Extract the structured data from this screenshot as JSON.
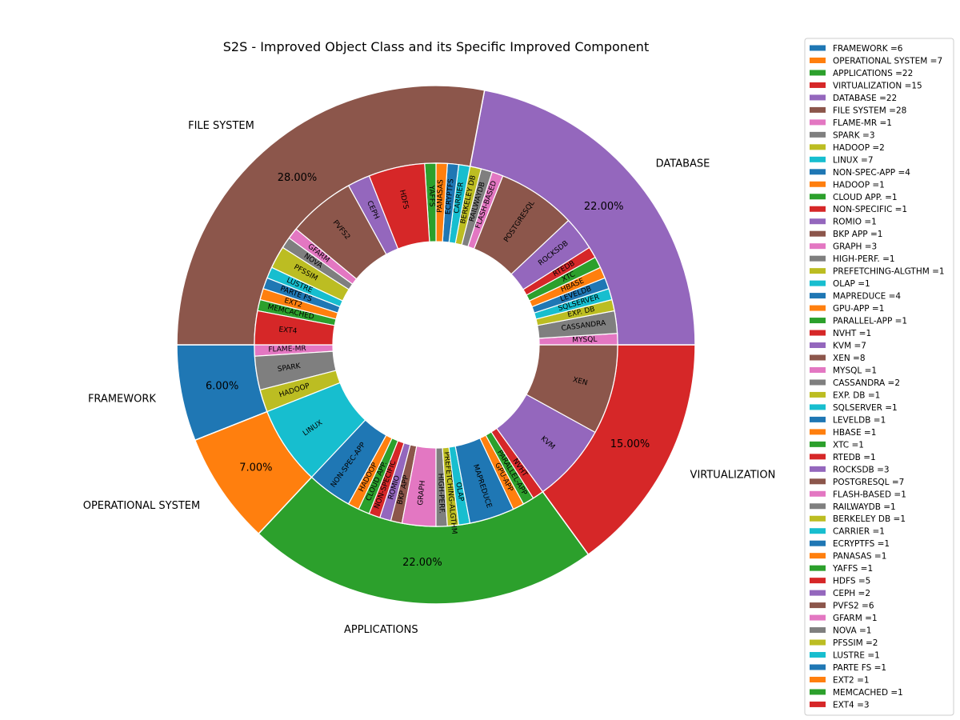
{
  "chart_data": {
    "type": "pie",
    "title": "S2S - Improved Object Class and its Specific Improved Component",
    "legend_placement": "right",
    "outer": [
      {
        "label": "FRAMEWORK",
        "value": 6,
        "pct": "6.00%",
        "color": "#1f77b4"
      },
      {
        "label": "OPERATIONAL SYSTEM",
        "value": 7,
        "pct": "7.00%",
        "color": "#ff7f0e"
      },
      {
        "label": "APPLICATIONS",
        "value": 22,
        "pct": "22.00%",
        "color": "#2ca02c"
      },
      {
        "label": "VIRTUALIZATION",
        "value": 15,
        "pct": "15.00%",
        "color": "#d62728"
      },
      {
        "label": "DATABASE",
        "value": 22,
        "pct": "22.00%",
        "color": "#9467bd"
      },
      {
        "label": "FILE SYSTEM",
        "value": 28,
        "pct": "28.00%",
        "color": "#8c564b"
      }
    ],
    "inner": [
      {
        "label": "FLAME-MR",
        "value": 1,
        "color": "#e377c2"
      },
      {
        "label": "SPARK",
        "value": 3,
        "color": "#7f7f7f"
      },
      {
        "label": "HADOOP",
        "value": 2,
        "color": "#bcbd22"
      },
      {
        "label": "LINUX",
        "value": 7,
        "color": "#17becf"
      },
      {
        "label": "NON-SPEC-APP",
        "value": 4,
        "color": "#1f77b4"
      },
      {
        "label": "HADOOP",
        "value": 1,
        "color": "#ff7f0e"
      },
      {
        "label": "CLOUD APP.",
        "value": 1,
        "color": "#2ca02c"
      },
      {
        "label": "NON-SPECIFIC",
        "value": 1,
        "color": "#d62728"
      },
      {
        "label": "ROMIO",
        "value": 1,
        "color": "#9467bd"
      },
      {
        "label": "BKP APP",
        "value": 1,
        "color": "#8c564b"
      },
      {
        "label": "GRAPH",
        "value": 3,
        "color": "#e377c2"
      },
      {
        "label": "HIGH-PERF.",
        "value": 1,
        "color": "#7f7f7f"
      },
      {
        "label": "PREFETCHING-ALGTHM",
        "value": 1,
        "color": "#bcbd22"
      },
      {
        "label": "OLAP",
        "value": 1,
        "color": "#17becf"
      },
      {
        "label": "MAPREDUCE",
        "value": 4,
        "color": "#1f77b4"
      },
      {
        "label": "GPU-APP",
        "value": 1,
        "color": "#ff7f0e"
      },
      {
        "label": "PARALLEL-APP",
        "value": 1,
        "color": "#2ca02c"
      },
      {
        "label": "NVHT",
        "value": 1,
        "color": "#d62728"
      },
      {
        "label": "KVM",
        "value": 7,
        "color": "#9467bd"
      },
      {
        "label": "XEN",
        "value": 8,
        "color": "#8c564b"
      },
      {
        "label": "MYSQL",
        "value": 1,
        "color": "#e377c2"
      },
      {
        "label": "CASSANDRA",
        "value": 2,
        "color": "#7f7f7f"
      },
      {
        "label": "EXP. DB",
        "value": 1,
        "color": "#bcbd22"
      },
      {
        "label": "SQLSERVER",
        "value": 1,
        "color": "#17becf"
      },
      {
        "label": "LEVELDB",
        "value": 1,
        "color": "#1f77b4"
      },
      {
        "label": "HBASE",
        "value": 1,
        "color": "#ff7f0e"
      },
      {
        "label": "XTC",
        "value": 1,
        "color": "#2ca02c"
      },
      {
        "label": "RTEDB",
        "value": 1,
        "color": "#d62728"
      },
      {
        "label": "ROCKSDB",
        "value": 3,
        "color": "#9467bd"
      },
      {
        "label": "POSTGRESQL",
        "value": 7,
        "color": "#8c564b"
      },
      {
        "label": "FLASH-BASED",
        "value": 1,
        "color": "#e377c2"
      },
      {
        "label": "RAILWAYDB",
        "value": 1,
        "color": "#7f7f7f"
      },
      {
        "label": "BERKELEY DB",
        "value": 1,
        "color": "#bcbd22"
      },
      {
        "label": "CARRIER",
        "value": 1,
        "color": "#17becf"
      },
      {
        "label": "ECRYPTFS",
        "value": 1,
        "color": "#1f77b4"
      },
      {
        "label": "PANASAS",
        "value": 1,
        "color": "#ff7f0e"
      },
      {
        "label": "YAFFS",
        "value": 1,
        "color": "#2ca02c"
      },
      {
        "label": "HDFS",
        "value": 5,
        "color": "#d62728"
      },
      {
        "label": "CEPH",
        "value": 2,
        "color": "#9467bd"
      },
      {
        "label": "PVFS2",
        "value": 6,
        "color": "#8c564b"
      },
      {
        "label": "GFARM",
        "value": 1,
        "color": "#e377c2"
      },
      {
        "label": "NOVA",
        "value": 1,
        "color": "#7f7f7f"
      },
      {
        "label": "PFSSIM",
        "value": 2,
        "color": "#bcbd22"
      },
      {
        "label": "LUSTRE",
        "value": 1,
        "color": "#17becf"
      },
      {
        "label": "PARTE FS",
        "value": 1,
        "color": "#1f77b4"
      },
      {
        "label": "EXT2",
        "value": 1,
        "color": "#ff7f0e"
      },
      {
        "label": "MEMCACHED",
        "value": 1,
        "color": "#2ca02c"
      },
      {
        "label": "EXT4",
        "value": 3,
        "color": "#d62728"
      }
    ],
    "legend": [
      {
        "text": "FRAMEWORK =6",
        "color": "#1f77b4"
      },
      {
        "text": "OPERATIONAL SYSTEM =7",
        "color": "#ff7f0e"
      },
      {
        "text": "APPLICATIONS =22",
        "color": "#2ca02c"
      },
      {
        "text": "VIRTUALIZATION =15",
        "color": "#d62728"
      },
      {
        "text": "DATABASE =22",
        "color": "#9467bd"
      },
      {
        "text": "FILE SYSTEM =28",
        "color": "#8c564b"
      },
      {
        "text": "FLAME-MR =1",
        "color": "#e377c2"
      },
      {
        "text": "SPARK =3",
        "color": "#7f7f7f"
      },
      {
        "text": "HADOOP =2",
        "color": "#bcbd22"
      },
      {
        "text": "LINUX =7",
        "color": "#17becf"
      },
      {
        "text": "NON-SPEC-APP =4",
        "color": "#1f77b4"
      },
      {
        "text": "HADOOP =1",
        "color": "#ff7f0e"
      },
      {
        "text": "CLOUD APP. =1",
        "color": "#2ca02c"
      },
      {
        "text": "NON-SPECIFIC =1",
        "color": "#d62728"
      },
      {
        "text": "ROMIO =1",
        "color": "#9467bd"
      },
      {
        "text": "BKP APP =1",
        "color": "#8c564b"
      },
      {
        "text": "GRAPH =3",
        "color": "#e377c2"
      },
      {
        "text": "HIGH-PERF. =1",
        "color": "#7f7f7f"
      },
      {
        "text": "PREFETCHING-ALGTHM =1",
        "color": "#bcbd22"
      },
      {
        "text": "OLAP =1",
        "color": "#17becf"
      },
      {
        "text": "MAPREDUCE =4",
        "color": "#1f77b4"
      },
      {
        "text": "GPU-APP =1",
        "color": "#ff7f0e"
      },
      {
        "text": "PARALLEL-APP =1",
        "color": "#2ca02c"
      },
      {
        "text": "NVHT =1",
        "color": "#d62728"
      },
      {
        "text": "KVM =7",
        "color": "#9467bd"
      },
      {
        "text": "XEN =8",
        "color": "#8c564b"
      },
      {
        "text": "MYSQL =1",
        "color": "#e377c2"
      },
      {
        "text": "CASSANDRA =2",
        "color": "#7f7f7f"
      },
      {
        "text": "EXP. DB =1",
        "color": "#bcbd22"
      },
      {
        "text": "SQLSERVER =1",
        "color": "#17becf"
      },
      {
        "text": "LEVELDB =1",
        "color": "#1f77b4"
      },
      {
        "text": "HBASE =1",
        "color": "#ff7f0e"
      },
      {
        "text": "XTC =1",
        "color": "#2ca02c"
      },
      {
        "text": "RTEDB =1",
        "color": "#d62728"
      },
      {
        "text": "ROCKSDB =3",
        "color": "#9467bd"
      },
      {
        "text": "POSTGRESQL =7",
        "color": "#8c564b"
      },
      {
        "text": "FLASH-BASED =1",
        "color": "#e377c2"
      },
      {
        "text": "RAILWAYDB =1",
        "color": "#7f7f7f"
      },
      {
        "text": "BERKELEY DB =1",
        "color": "#bcbd22"
      },
      {
        "text": "CARRIER =1",
        "color": "#17becf"
      },
      {
        "text": "ECRYPTFS =1",
        "color": "#1f77b4"
      },
      {
        "text": "PANASAS =1",
        "color": "#ff7f0e"
      },
      {
        "text": "YAFFS =1",
        "color": "#2ca02c"
      },
      {
        "text": "HDFS =5",
        "color": "#d62728"
      },
      {
        "text": "CEPH =2",
        "color": "#9467bd"
      },
      {
        "text": "PVFS2 =6",
        "color": "#8c564b"
      },
      {
        "text": "GFARM =1",
        "color": "#e377c2"
      },
      {
        "text": "NOVA =1",
        "color": "#7f7f7f"
      },
      {
        "text": "PFSSIM =2",
        "color": "#bcbd22"
      },
      {
        "text": "LUSTRE =1",
        "color": "#17becf"
      },
      {
        "text": "PARTE FS =1",
        "color": "#1f77b4"
      },
      {
        "text": "EXT2 =1",
        "color": "#ff7f0e"
      },
      {
        "text": "MEMCACHED =1",
        "color": "#2ca02c"
      },
      {
        "text": "EXT4 =3",
        "color": "#d62728"
      }
    ]
  }
}
